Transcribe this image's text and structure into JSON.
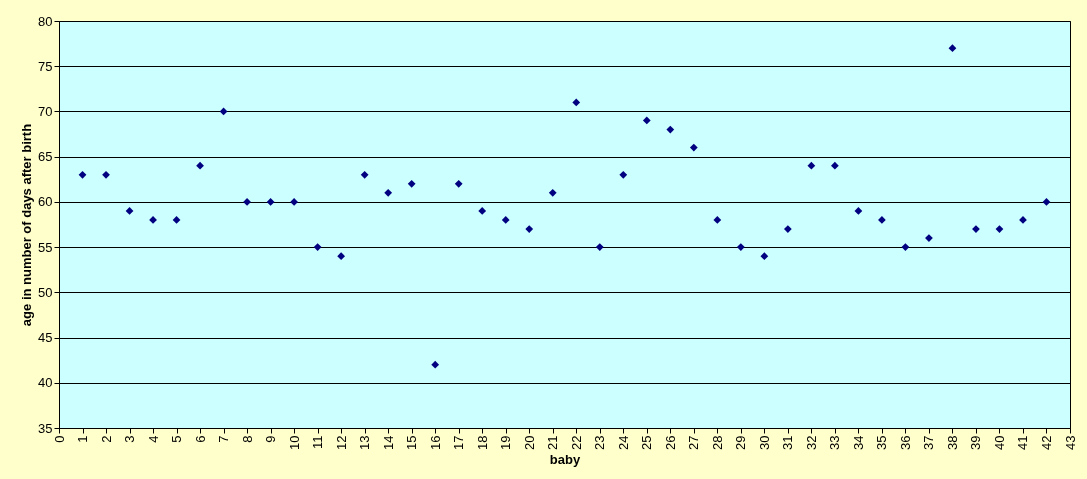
{
  "chart_data": {
    "type": "scatter",
    "xlabel": "baby",
    "ylabel": "age in number of days after birth",
    "x": [
      1,
      2,
      3,
      4,
      5,
      6,
      7,
      8,
      9,
      10,
      11,
      12,
      13,
      14,
      15,
      16,
      17,
      18,
      19,
      20,
      21,
      22,
      23,
      24,
      25,
      26,
      27,
      28,
      29,
      30,
      31,
      32,
      33,
      34,
      35,
      36,
      37,
      38,
      39,
      40,
      41,
      42
    ],
    "series": [
      {
        "color": "#000080",
        "values": [
          63,
          63,
          59,
          58,
          58,
          64,
          70,
          60,
          60,
          60,
          55,
          54,
          63,
          61,
          62,
          42,
          62,
          59,
          58,
          57,
          61,
          71,
          55,
          63,
          69,
          68,
          66,
          58,
          55,
          54,
          57,
          64,
          64,
          59,
          58,
          55,
          56,
          77,
          57,
          57,
          58,
          60
        ]
      }
    ],
    "xlim": [
      0,
      43
    ],
    "xticks": [
      0,
      1,
      2,
      3,
      4,
      5,
      6,
      7,
      8,
      9,
      10,
      11,
      12,
      13,
      14,
      15,
      16,
      17,
      18,
      19,
      20,
      21,
      22,
      23,
      24,
      25,
      26,
      27,
      28,
      29,
      30,
      31,
      32,
      33,
      34,
      35,
      36,
      37,
      38,
      39,
      40,
      41,
      42,
      43
    ],
    "ylim": [
      35,
      80
    ],
    "yticks": [
      35,
      40,
      45,
      50,
      55,
      60,
      65,
      70,
      75,
      80
    ],
    "grid": "y",
    "marker": "diamond"
  }
}
